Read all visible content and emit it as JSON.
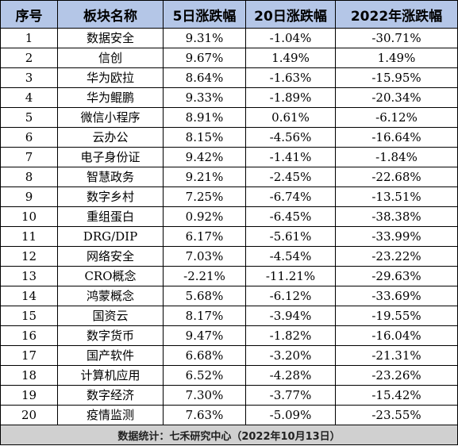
{
  "table": {
    "headers": [
      "序号",
      "板块名称",
      "5日涨跌幅",
      "20日涨跌幅",
      "2022年涨跌幅"
    ],
    "rows": [
      [
        "1",
        "数据安全",
        "9.31%",
        "-1.04%",
        "-30.71%"
      ],
      [
        "2",
        "信创",
        "9.67%",
        "1.49%",
        "1.49%"
      ],
      [
        "3",
        "华为欧拉",
        "8.64%",
        "-1.63%",
        "-15.95%"
      ],
      [
        "4",
        "华为鲲鹏",
        "9.33%",
        "-1.89%",
        "-20.34%"
      ],
      [
        "5",
        "微信小程序",
        "8.91%",
        "0.61%",
        "-6.12%"
      ],
      [
        "6",
        "云办公",
        "8.15%",
        "-4.56%",
        "-16.64%"
      ],
      [
        "7",
        "电子身份证",
        "9.42%",
        "-1.41%",
        "-1.84%"
      ],
      [
        "8",
        "智慧政务",
        "9.21%",
        "-2.45%",
        "-22.68%"
      ],
      [
        "9",
        "数字乡村",
        "7.25%",
        "-6.74%",
        "-13.51%"
      ],
      [
        "10",
        "重组蛋白",
        "0.92%",
        "-6.45%",
        "-38.38%"
      ],
      [
        "11",
        "DRG/DIP",
        "6.17%",
        "-5.61%",
        "-33.99%"
      ],
      [
        "12",
        "网络安全",
        "7.03%",
        "-4.54%",
        "-23.22%"
      ],
      [
        "13",
        "CRO概念",
        "-2.21%",
        "-11.21%",
        "-29.63%"
      ],
      [
        "14",
        "鸿蒙概念",
        "5.68%",
        "-6.12%",
        "-33.69%"
      ],
      [
        "15",
        "国资云",
        "8.17%",
        "-3.94%",
        "-19.55%"
      ],
      [
        "16",
        "数字货币",
        "9.47%",
        "-1.82%",
        "-16.04%"
      ],
      [
        "17",
        "国产软件",
        "6.68%",
        "-3.20%",
        "-21.31%"
      ],
      [
        "18",
        "计算机应用",
        "6.52%",
        "-4.28%",
        "-23.26%"
      ],
      [
        "19",
        "数字经济",
        "7.30%",
        "-3.77%",
        "-15.42%"
      ],
      [
        "20",
        "疫情监测",
        "7.63%",
        "-5.09%",
        "-23.55%"
      ]
    ],
    "footer": "数据统计：七禾研究中心（2022年10月13日）"
  },
  "colors": {
    "header_bg": "#b4c6e7",
    "footer_bg": "#d0d0d0",
    "border": "#000000"
  }
}
